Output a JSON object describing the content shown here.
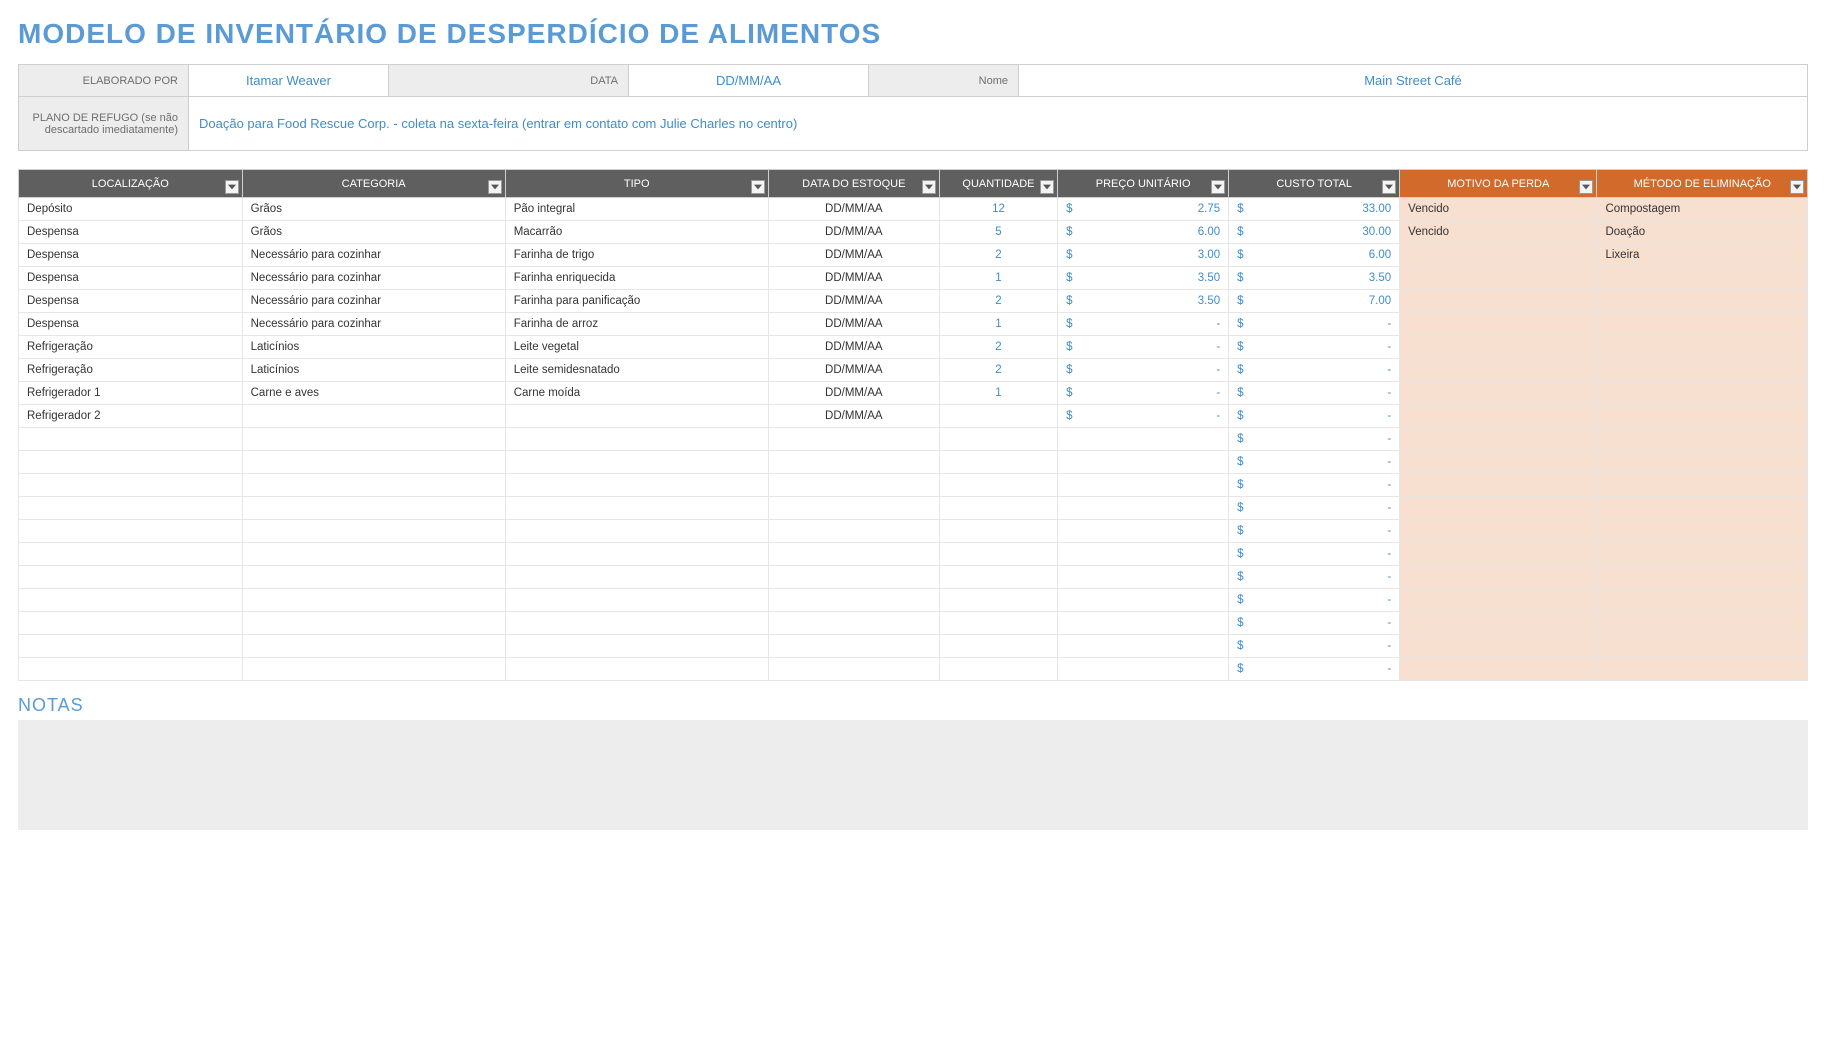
{
  "title": "MODELO DE INVENTÁRIO DE DESPERDÍCIO DE ALIMENTOS",
  "header": {
    "elaboradoPor_label": "ELABORADO POR",
    "elaboradoPor_value": "Itamar Weaver",
    "data_label": "DATA",
    "data_value": "DD/MM/AA",
    "nome_label": "Nome",
    "nome_value": "Main Street Café",
    "plano_label": "PLANO DE REFUGO (se não descartado imediatamente)",
    "plano_value": "Doação para Food Rescue Corp. - coleta na sexta-feira (entrar em contato com Julie Charles no centro)"
  },
  "columns": {
    "loc": "LOCALIZAÇÃO",
    "cat": "CATEGORIA",
    "tipo": "TIPO",
    "data": "DATA DO ESTOQUE",
    "qtd": "QUANTIDADE",
    "preco": "PREÇO UNITÁRIO",
    "custo": "CUSTO TOTAL",
    "motivo": "MOTIVO DA PERDA",
    "metodo": "MÉTODO DE ELIMINAÇÃO"
  },
  "currencySymbol": "$",
  "dash": "-",
  "rows": [
    {
      "loc": "Depósito",
      "cat": "Grãos",
      "tipo": "Pão integral",
      "data": "DD/MM/AA",
      "qtd": "12",
      "preco": "2.75",
      "custo": "33.00",
      "motivo": "Vencido",
      "metodo": "Compostagem"
    },
    {
      "loc": "Despensa",
      "cat": "Grãos",
      "tipo": "Macarrão",
      "data": "DD/MM/AA",
      "qtd": "5",
      "preco": "6.00",
      "custo": "30.00",
      "motivo": "Vencido",
      "metodo": "Doação"
    },
    {
      "loc": "Despensa",
      "cat": "Necessário para cozinhar",
      "tipo": "Farinha de trigo",
      "data": "DD/MM/AA",
      "qtd": "2",
      "preco": "3.00",
      "custo": "6.00",
      "motivo": "",
      "metodo": "Lixeira"
    },
    {
      "loc": "Despensa",
      "cat": "Necessário para cozinhar",
      "tipo": "Farinha enriquecida",
      "data": "DD/MM/AA",
      "qtd": "1",
      "preco": "3.50",
      "custo": "3.50",
      "motivo": "",
      "metodo": ""
    },
    {
      "loc": "Despensa",
      "cat": "Necessário para cozinhar",
      "tipo": "Farinha para panificação",
      "data": "DD/MM/AA",
      "qtd": "2",
      "preco": "3.50",
      "custo": "7.00",
      "motivo": "",
      "metodo": ""
    },
    {
      "loc": "Despensa",
      "cat": "Necessário para cozinhar",
      "tipo": "Farinha de arroz",
      "data": "DD/MM/AA",
      "qtd": "1",
      "preco": "-",
      "custo": "-",
      "motivo": "",
      "metodo": ""
    },
    {
      "loc": "Refrigeração",
      "cat": "Laticínios",
      "tipo": "Leite vegetal",
      "data": "DD/MM/AA",
      "qtd": "2",
      "preco": "-",
      "custo": "-",
      "motivo": "",
      "metodo": ""
    },
    {
      "loc": "Refrigeração",
      "cat": "Laticínios",
      "tipo": "Leite semidesnatado",
      "data": "DD/MM/AA",
      "qtd": "2",
      "preco": "-",
      "custo": "-",
      "motivo": "",
      "metodo": ""
    },
    {
      "loc": "Refrigerador 1",
      "cat": "Carne e aves",
      "tipo": "Carne moída",
      "data": "DD/MM/AA",
      "qtd": "1",
      "preco": "-",
      "custo": "-",
      "motivo": "",
      "metodo": ""
    },
    {
      "loc": "Refrigerador 2",
      "cat": "",
      "tipo": "",
      "data": "DD/MM/AA",
      "qtd": "",
      "preco": "-",
      "custo": "-",
      "motivo": "",
      "metodo": ""
    },
    {
      "loc": "",
      "cat": "",
      "tipo": "",
      "data": "",
      "qtd": "",
      "preco": "",
      "custo": "-",
      "motivo": "",
      "metodo": ""
    },
    {
      "loc": "",
      "cat": "",
      "tipo": "",
      "data": "",
      "qtd": "",
      "preco": "",
      "custo": "-",
      "motivo": "",
      "metodo": ""
    },
    {
      "loc": "",
      "cat": "",
      "tipo": "",
      "data": "",
      "qtd": "",
      "preco": "",
      "custo": "-",
      "motivo": "",
      "metodo": ""
    },
    {
      "loc": "",
      "cat": "",
      "tipo": "",
      "data": "",
      "qtd": "",
      "preco": "",
      "custo": "-",
      "motivo": "",
      "metodo": ""
    },
    {
      "loc": "",
      "cat": "",
      "tipo": "",
      "data": "",
      "qtd": "",
      "preco": "",
      "custo": "-",
      "motivo": "",
      "metodo": ""
    },
    {
      "loc": "",
      "cat": "",
      "tipo": "",
      "data": "",
      "qtd": "",
      "preco": "",
      "custo": "-",
      "motivo": "",
      "metodo": ""
    },
    {
      "loc": "",
      "cat": "",
      "tipo": "",
      "data": "",
      "qtd": "",
      "preco": "",
      "custo": "-",
      "motivo": "",
      "metodo": ""
    },
    {
      "loc": "",
      "cat": "",
      "tipo": "",
      "data": "",
      "qtd": "",
      "preco": "",
      "custo": "-",
      "motivo": "",
      "metodo": ""
    },
    {
      "loc": "",
      "cat": "",
      "tipo": "",
      "data": "",
      "qtd": "",
      "preco": "",
      "custo": "-",
      "motivo": "",
      "metodo": ""
    },
    {
      "loc": "",
      "cat": "",
      "tipo": "",
      "data": "",
      "qtd": "",
      "preco": "",
      "custo": "-",
      "motivo": "",
      "metodo": ""
    },
    {
      "loc": "",
      "cat": "",
      "tipo": "",
      "data": "",
      "qtd": "",
      "preco": "",
      "custo": "-",
      "motivo": "",
      "metodo": ""
    }
  ],
  "notas_title": "NOTAS",
  "notas_value": ""
}
